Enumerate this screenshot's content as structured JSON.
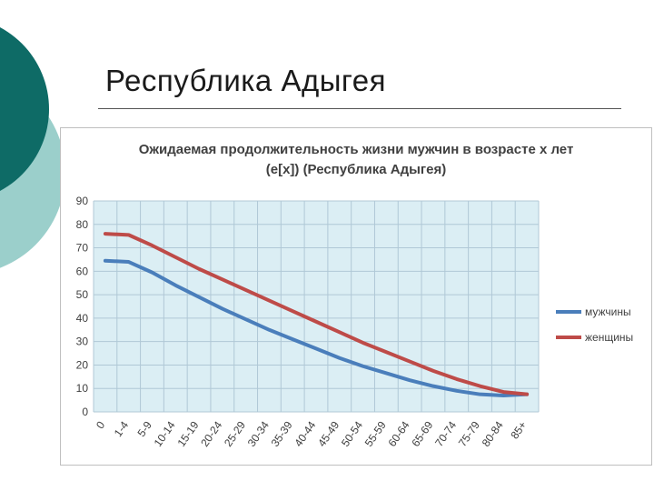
{
  "slide": {
    "title": "Республика Адыгея"
  },
  "colors": {
    "circle_dark": "#0e6b66",
    "circle_light": "#9bcfcb",
    "plot_background": "#dbeef4",
    "grid": "#b0c8d6",
    "men": "#4a7ebb",
    "women": "#be4b48"
  },
  "chart_data": {
    "type": "line",
    "title_line1": "Ожидаемая продолжительность жизни мужчин в возрасте х лет",
    "title_line2": "(e[x]) (Республика Адыгея)",
    "categories": [
      "0",
      "1-4",
      "5-9",
      "10-14",
      "15-19",
      "20-24",
      "25-29",
      "30-34",
      "35-39",
      "40-44",
      "45-49",
      "50-54",
      "55-59",
      "60-64",
      "65-69",
      "70-74",
      "75-79",
      "80-84",
      "85+"
    ],
    "y_ticks": [
      "0",
      "10",
      "20",
      "30",
      "40",
      "50",
      "60",
      "70",
      "80",
      "90"
    ],
    "ylim": [
      0,
      90
    ],
    "grid": true,
    "legend_position": "right",
    "series": [
      {
        "name": "мужчины",
        "color": "#4a7ebb",
        "values": [
          64.5,
          64,
          59.5,
          54,
          49,
          44,
          39.5,
          35,
          31,
          27,
          23,
          19.5,
          16.5,
          13.5,
          11,
          9,
          7.5,
          7,
          7.5
        ]
      },
      {
        "name": "женщины",
        "color": "#be4b48",
        "values": [
          76,
          75.5,
          71,
          66,
          61,
          56.5,
          52,
          47.5,
          43,
          38.5,
          34,
          29.5,
          25.5,
          21.5,
          17.5,
          14,
          11,
          8.5,
          7.5
        ]
      }
    ]
  }
}
